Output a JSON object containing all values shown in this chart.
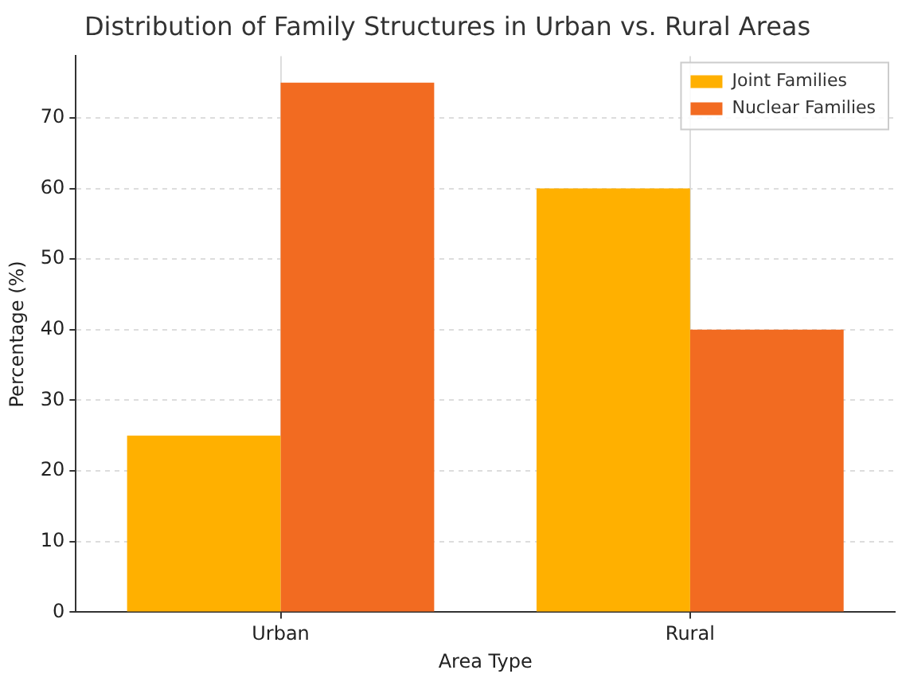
{
  "chart_data": {
    "type": "bar",
    "title": "Distribution of Family Structures in Urban vs. Rural Areas",
    "xlabel": "Area Type",
    "ylabel": "Percentage (%)",
    "categories": [
      "Urban",
      "Rural"
    ],
    "series": [
      {
        "name": "Joint Families",
        "color": "#ffb000",
        "values": [
          25,
          60
        ]
      },
      {
        "name": "Nuclear Families",
        "color": "#f26b21",
        "values": [
          75,
          40
        ]
      }
    ],
    "ylim": [
      0,
      78.75
    ],
    "yticks": [
      0,
      10,
      20,
      30,
      40,
      50,
      60,
      70
    ],
    "grid": true,
    "legend": "top right"
  }
}
